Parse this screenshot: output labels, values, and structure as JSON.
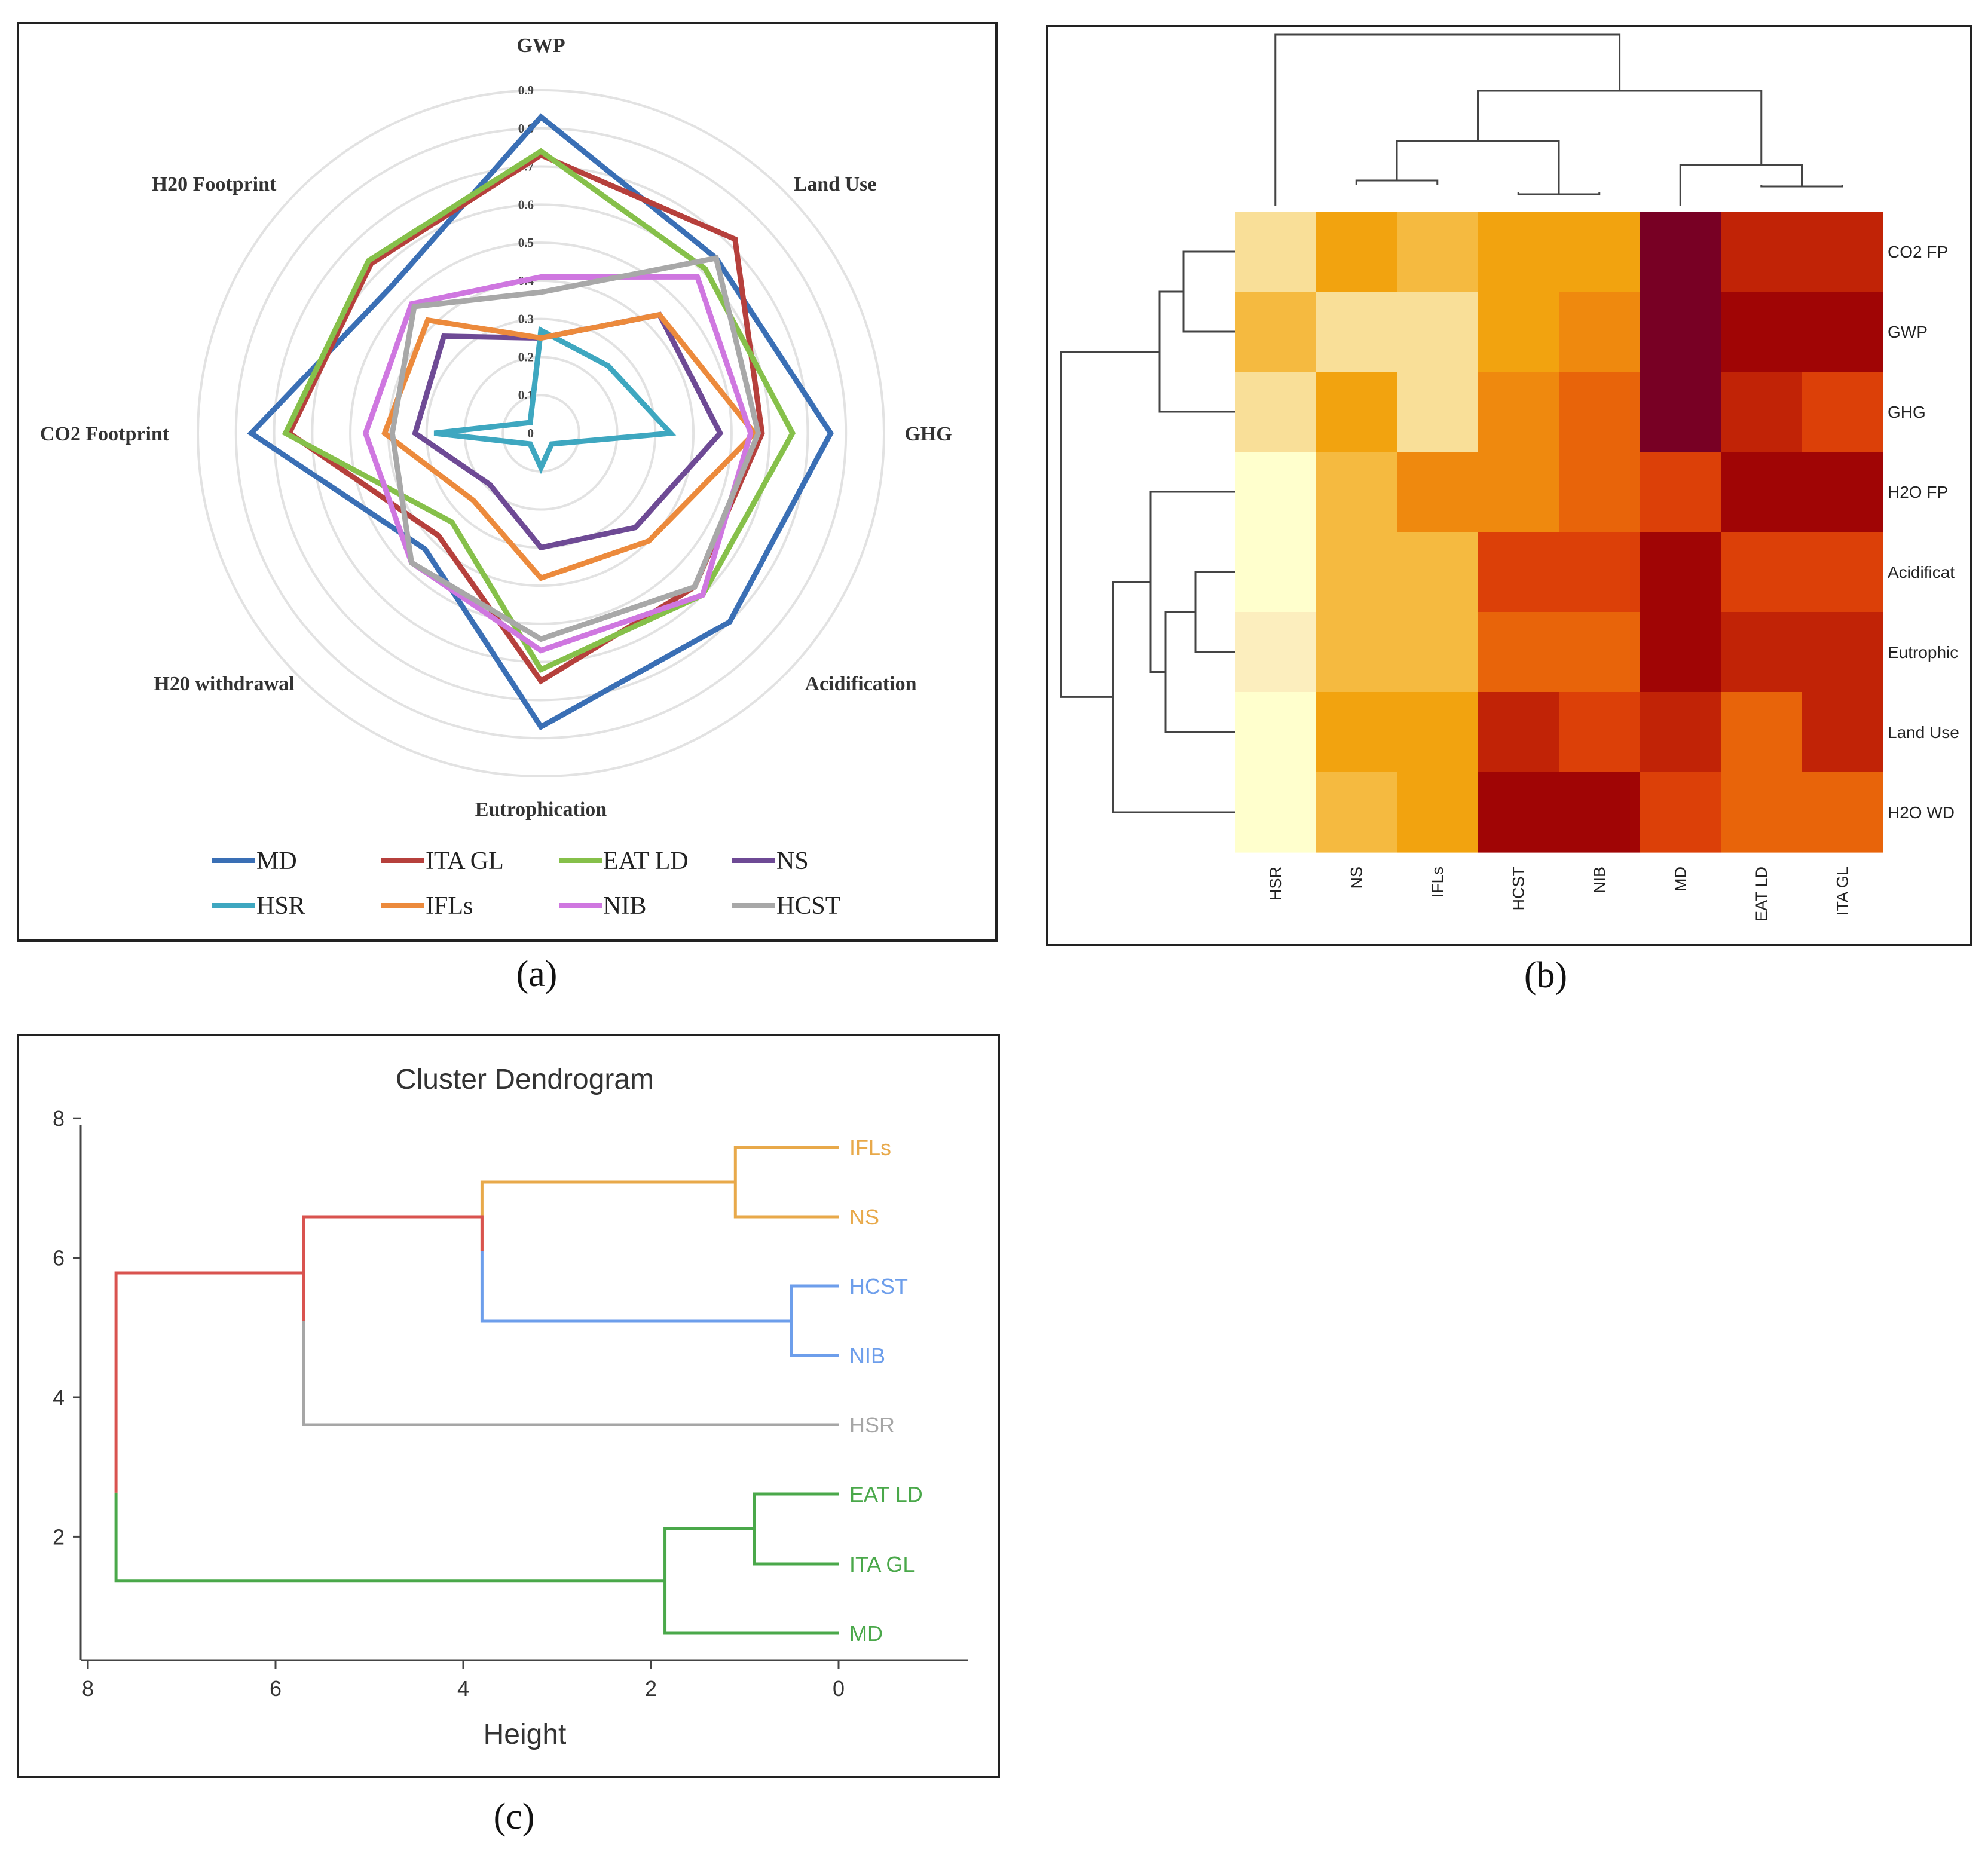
{
  "panel_labels": [
    "(a)",
    "(b)",
    "(c)"
  ],
  "chart_data": [
    {
      "type": "radar",
      "panel": "(a)",
      "axes": [
        "GWP",
        "Land Use",
        "GHG",
        "Acidification",
        "Eutrophication",
        "H20 withdrawal",
        "CO2 Footprint",
        "H20 Footprint"
      ],
      "rlim": [
        0,
        0.9
      ],
      "tick_labels": [
        "0",
        "0.1",
        "0.2",
        "0.3",
        "0.4",
        "0.5",
        "0.6",
        "0.7",
        "0.8",
        "0.9"
      ],
      "legend_position": "bottom",
      "series": [
        {
          "name": "MD",
          "color": "#3a6fb5",
          "values": [
            0.83,
            0.65,
            0.76,
            0.7,
            0.77,
            0.43,
            0.76,
            0.55
          ]
        },
        {
          "name": "ITA GL",
          "color": "#b6403c",
          "values": [
            0.73,
            0.72,
            0.58,
            0.57,
            0.65,
            0.38,
            0.66,
            0.63
          ]
        },
        {
          "name": "EAT LD",
          "color": "#86c04a",
          "values": [
            0.74,
            0.61,
            0.66,
            0.6,
            0.62,
            0.33,
            0.67,
            0.64
          ]
        },
        {
          "name": "NS",
          "color": "#6e4a95",
          "values": [
            0.25,
            0.44,
            0.47,
            0.35,
            0.3,
            0.19,
            0.33,
            0.36
          ]
        },
        {
          "name": "HSR",
          "color": "#3ea7c0",
          "values": [
            0.27,
            0.25,
            0.34,
            0.04,
            0.09,
            0.04,
            0.28,
            0.04
          ]
        },
        {
          "name": "IFLs",
          "color": "#ec8a3c",
          "values": [
            0.25,
            0.44,
            0.56,
            0.4,
            0.38,
            0.25,
            0.41,
            0.42
          ]
        },
        {
          "name": "NIB",
          "color": "#cf77e0",
          "values": [
            0.41,
            0.58,
            0.55,
            0.6,
            0.57,
            0.48,
            0.46,
            0.48
          ]
        },
        {
          "name": "HCST",
          "color": "#a8a8a8",
          "values": [
            0.37,
            0.65,
            0.57,
            0.57,
            0.54,
            0.48,
            0.39,
            0.47
          ]
        }
      ]
    },
    {
      "type": "heatmap",
      "panel": "(b)",
      "columns": [
        "HSR",
        "NS",
        "IFLs",
        "HCST",
        "NIB",
        "MD",
        "EAT LD",
        "ITA GL"
      ],
      "rows": [
        "CO2 FP",
        "GWP",
        "GHG",
        "H2O FP",
        "Acidificat",
        "Eutrophic",
        "Land Use",
        "H2O WD"
      ],
      "values": [
        [
          2,
          4,
          3,
          4,
          4,
          9,
          7,
          7
        ],
        [
          3,
          2,
          2,
          4,
          5,
          9,
          8,
          8
        ],
        [
          2,
          4,
          2,
          5,
          6,
          9,
          7,
          6.5
        ],
        [
          0,
          3,
          5,
          5,
          6,
          6.5,
          8,
          8
        ],
        [
          0,
          3,
          3,
          6.5,
          6.5,
          8,
          6.5,
          6.5
        ],
        [
          1,
          3,
          3,
          6,
          6,
          8,
          7,
          7
        ],
        [
          0,
          4,
          4,
          7,
          6.5,
          7,
          6,
          7
        ],
        [
          0,
          3,
          4,
          8,
          8,
          6.5,
          6,
          6
        ]
      ],
      "color_scale": "heat (light yellow to dark red)"
    },
    {
      "type": "dendrogram",
      "panel": "(c)",
      "title": "Cluster Dendrogram",
      "xlabel": "Height",
      "x_ticks": [
        "8",
        "6",
        "4",
        "2",
        "0"
      ],
      "y_ticks": [
        "8",
        "6",
        "4",
        "2"
      ],
      "xlim": [
        8.2,
        -1.4
      ],
      "leaves": [
        {
          "name": "IFLs",
          "color": "#e8a94a"
        },
        {
          "name": "NS",
          "color": "#e8a94a"
        },
        {
          "name": "HCST",
          "color": "#6d9eeb"
        },
        {
          "name": "NIB",
          "color": "#6d9eeb"
        },
        {
          "name": "HSR",
          "color": "#a6a6a6"
        },
        {
          "name": "EAT LD",
          "color": "#4aa84a"
        },
        {
          "name": "ITA GL",
          "color": "#4aa84a"
        },
        {
          "name": "MD",
          "color": "#4aa84a"
        }
      ],
      "merge_heights": {
        "IFLs-NS": 1.1,
        "HCST-NIB": 0.5,
        "yellow-blue": 3.8,
        "plus-HSR": 5.7,
        "EAT-ITA": 0.9,
        "green": 1.85,
        "root": 7.7
      }
    }
  ]
}
